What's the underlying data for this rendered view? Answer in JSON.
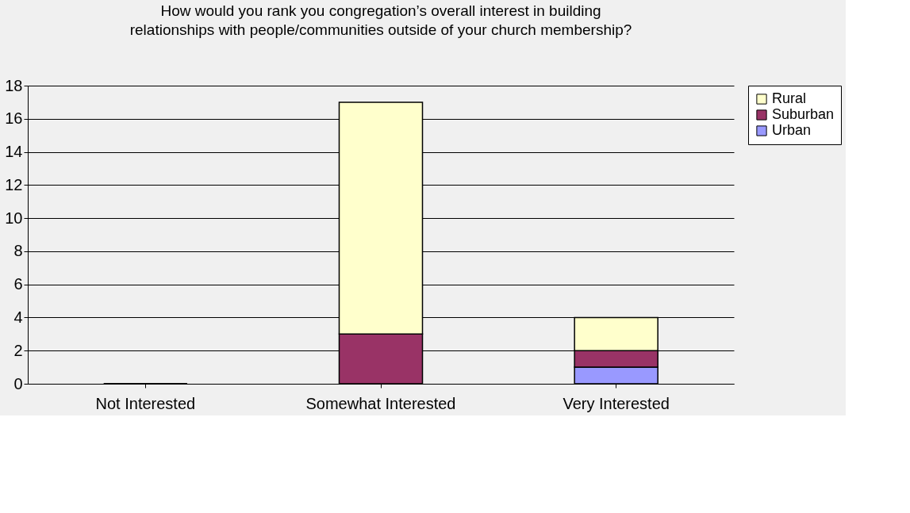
{
  "chart_data": {
    "type": "bar",
    "title": "How would you rank you congregation’s overall interest in building\nrelationships with people/communities outside of your church membership?",
    "categories": [
      "Not Interested",
      "Somewhat Interested",
      "Very Interested"
    ],
    "stacked": true,
    "series": [
      {
        "name": "Urban",
        "color": "#9999ff",
        "values": [
          0,
          0,
          1
        ]
      },
      {
        "name": "Suburban",
        "color": "#993366",
        "values": [
          0,
          3,
          1
        ]
      },
      {
        "name": "Rural",
        "color": "#ffffcc",
        "values": [
          0,
          14,
          2
        ]
      }
    ],
    "ylim": [
      0,
      18
    ],
    "yticks": [
      0,
      2,
      4,
      6,
      8,
      10,
      12,
      14,
      16,
      18
    ],
    "grid": "y",
    "legend": "right"
  }
}
